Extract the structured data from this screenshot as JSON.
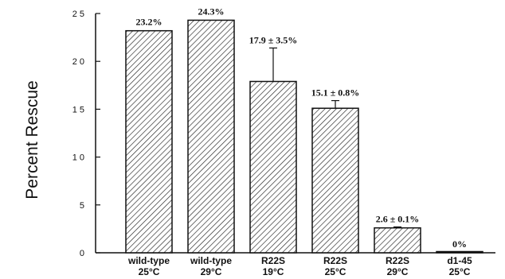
{
  "chart_data": {
    "type": "bar",
    "ylabel": "Percent Rescue",
    "ylim": [
      0,
      25
    ],
    "yticks": [
      0,
      5,
      10,
      15,
      20,
      25
    ],
    "ytick_labels": [
      "0",
      "5",
      "1 0",
      "1 5",
      "2 0",
      "2 5"
    ],
    "categories": [
      {
        "line1": "wild-type",
        "line2": "25°C"
      },
      {
        "line1": "wild-type",
        "line2": "29°C"
      },
      {
        "line1": "R22S",
        "line2": "19°C"
      },
      {
        "line1": "R22S",
        "line2": "25°C"
      },
      {
        "line1": "R22S",
        "line2": "29°C"
      },
      {
        "line1": "d1-45",
        "line2": "25°C"
      }
    ],
    "values": [
      23.2,
      24.3,
      17.9,
      15.1,
      2.6,
      0
    ],
    "errors": [
      null,
      null,
      3.5,
      0.8,
      0.1,
      null
    ],
    "data_labels": [
      "23.2%",
      "24.3%",
      "17.9 ± 3.5%",
      "15.1 ± 0.8%",
      "2.6 ± 0.1%",
      "0%"
    ],
    "bar_fill": "hatched",
    "grid": false
  }
}
